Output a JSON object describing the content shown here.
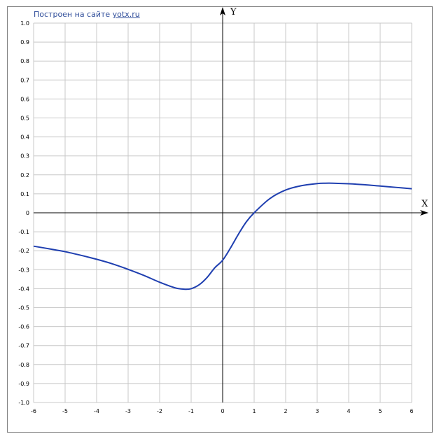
{
  "credit": {
    "text": "Построен на сайте",
    "link": "yotx.ru"
  },
  "colors": {
    "curve": "#1f3fb0",
    "grid": "#c8c8c8",
    "axis": "#000000",
    "credit": "#2f4d9a"
  },
  "chart_data": {
    "type": "line",
    "title": "",
    "xlabel": "X",
    "ylabel": "Y",
    "xlim": [
      -6,
      6
    ],
    "ylim": [
      -1.0,
      1.0
    ],
    "grid": true,
    "xticks": [
      -6,
      -5,
      -4,
      -3,
      -2,
      -1,
      0,
      1,
      2,
      3,
      4,
      5,
      6
    ],
    "xtick_labels": [
      "-6",
      "-5",
      "-4",
      "-3",
      "-2",
      "-1",
      "0",
      "1",
      "2",
      "3",
      "4",
      "5",
      "6"
    ],
    "yticks": [
      -1.0,
      -0.9,
      -0.8,
      -0.7,
      -0.6,
      -0.5,
      -0.4,
      -0.3,
      -0.2,
      -0.1,
      0,
      0.1,
      0.2,
      0.3,
      0.4,
      0.5,
      0.6,
      0.7,
      0.8,
      0.9,
      1.0
    ],
    "ytick_labels": [
      "-1.0",
      "-0.9",
      "-0.8",
      "-0.7",
      "-0.6",
      "-0.5",
      "-0.4",
      "-0.3",
      "-0.2",
      "-0.1",
      "0",
      "0.1",
      "0.2",
      "0.3",
      "0.4",
      "0.5",
      "0.6",
      "0.7",
      "0.8",
      "0.9",
      "1.0"
    ],
    "series": [
      {
        "x": [
          -6,
          -5.5,
          -5,
          -4.5,
          -4,
          -3.5,
          -3,
          -2.5,
          -2,
          -1.5,
          -1.2,
          -1,
          -0.75,
          -0.5,
          -0.25,
          0,
          0.25,
          0.5,
          0.75,
          1,
          1.5,
          2,
          2.5,
          3,
          3.25,
          3.5,
          4,
          4.5,
          5,
          5.5,
          6
        ],
        "y": [
          -0.176,
          -0.19,
          -0.205,
          -0.224,
          -0.245,
          -0.269,
          -0.298,
          -0.33,
          -0.366,
          -0.396,
          -0.403,
          -0.4,
          -0.38,
          -0.342,
          -0.29,
          -0.25,
          -0.185,
          -0.113,
          -0.048,
          0.0,
          0.075,
          0.12,
          0.143,
          0.154,
          0.156,
          0.156,
          0.153,
          0.148,
          0.141,
          0.134,
          0.127
        ]
      }
    ]
  }
}
